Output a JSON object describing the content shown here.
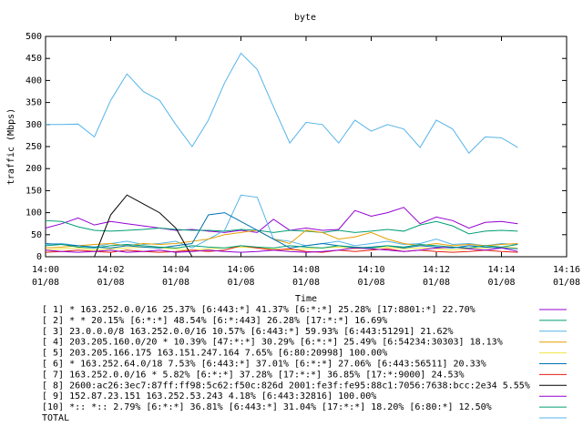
{
  "chart_data": {
    "type": "line",
    "title": "byte",
    "xlabel": "Time",
    "ylabel": "traffic (Mbps)",
    "xlim": [
      0,
      16
    ],
    "xticks": [
      {
        "value": 0,
        "label": "14:00",
        "date": "01/08"
      },
      {
        "value": 2,
        "label": "14:02",
        "date": "01/08"
      },
      {
        "value": 4,
        "label": "14:04",
        "date": "01/08"
      },
      {
        "value": 6,
        "label": "14:06",
        "date": "01/08"
      },
      {
        "value": 8,
        "label": "14:08",
        "date": "01/08"
      },
      {
        "value": 10,
        "label": "14:10",
        "date": "01/08"
      },
      {
        "value": 12,
        "label": "14:12",
        "date": "01/08"
      },
      {
        "value": 14,
        "label": "14:14",
        "date": "01/08"
      },
      {
        "value": 16,
        "label": "14:16",
        "date": "01/08"
      }
    ],
    "ylim": [
      0,
      500
    ],
    "yticks": [
      0,
      50,
      100,
      150,
      200,
      250,
      300,
      350,
      400,
      450,
      500
    ],
    "grid": false,
    "x": [
      0,
      0.5,
      1,
      1.5,
      2,
      2.5,
      3,
      3.5,
      4,
      4.5,
      5,
      5.5,
      6,
      6.5,
      7,
      7.5,
      8,
      8.5,
      9,
      9.5,
      10,
      10.5,
      11,
      11.5,
      12,
      12.5,
      13,
      13.5,
      14,
      14.5
    ],
    "series": [
      {
        "name": "[ 1] * 163.252.0.0/16 25.37%  [6:443:*] 41.37% [6:*:*] 25.28% [17:8801:*] 22.70%",
        "color": "#9400d3",
        "values": [
          65,
          75,
          88,
          72,
          80,
          75,
          70,
          65,
          60,
          62,
          58,
          55,
          60,
          55,
          85,
          60,
          65,
          60,
          62,
          105,
          92,
          100,
          112,
          75,
          90,
          82,
          65,
          78,
          80,
          75
        ]
      },
      {
        "name": "[ 2] * * 20.15%  [6:*:*] 48.54% [6:*:443] 26.28% [17:*:*] 16.69%",
        "color": "#009e73",
        "values": [
          82,
          80,
          68,
          60,
          58,
          60,
          62,
          65,
          62,
          60,
          60,
          58,
          62,
          60,
          55,
          60,
          58,
          55,
          60,
          55,
          58,
          62,
          58,
          72,
          80,
          70,
          52,
          58,
          60,
          58
        ]
      },
      {
        "name": "[ 3] 23.0.0.0/8 163.252.0.0/16 10.57%  [6:443:*] 59.93% [6:443:51291] 21.62%",
        "color": "#56b4e9",
        "values": [
          28,
          30,
          25,
          22,
          30,
          35,
          28,
          30,
          35,
          20,
          40,
          60,
          140,
          135,
          40,
          35,
          25,
          30,
          35,
          25,
          30,
          35,
          28,
          30,
          40,
          28,
          30,
          25,
          30,
          28
        ]
      },
      {
        "name": "[ 4] 203.205.160.0/20 * 10.39%  [47:*:*] 30.29% [6:*:*] 25.49% [6:54234:30303] 18.13%",
        "color": "#e69f00",
        "values": [
          20,
          22,
          25,
          28,
          30,
          25,
          30,
          28,
          30,
          35,
          40,
          50,
          55,
          60,
          40,
          30,
          60,
          55,
          40,
          45,
          55,
          40,
          30,
          25,
          30,
          25,
          28,
          25,
          28,
          30
        ]
      },
      {
        "name": "[ 5] 203.205.166.175 163.151.247.164 7.65%  [6:80:20998] 100.00%",
        "color": "#f0e442",
        "values": [
          15,
          18,
          20,
          15,
          18,
          20,
          22,
          20,
          18,
          15,
          18,
          20,
          22,
          20,
          18,
          15,
          18,
          20,
          22,
          18,
          20,
          22,
          18,
          20,
          18,
          15,
          18,
          20,
          22,
          20
        ]
      },
      {
        "name": "[ 6] * 163.252.64.0/18 7.53%  [6:443:*] 37.01% [6:*:*] 27.06% [6:443:56511] 20.33%",
        "color": "#0072b2",
        "values": [
          30,
          28,
          25,
          22,
          20,
          25,
          22,
          20,
          25,
          30,
          95,
          100,
          80,
          60,
          40,
          20,
          25,
          30,
          25,
          20,
          22,
          25,
          20,
          25,
          22,
          20,
          25,
          22,
          20,
          18
        ]
      },
      {
        "name": "[ 7] 163.252.0.0/16 * 5.82%  [6:*:*] 37.28% [17:*:*] 36.85% [17:*:9000] 24.53%",
        "color": "#e51e10",
        "values": [
          10,
          12,
          15,
          12,
          10,
          15,
          12,
          10,
          12,
          15,
          12,
          15,
          25,
          20,
          15,
          18,
          12,
          10,
          15,
          12,
          15,
          18,
          12,
          15,
          12,
          10,
          12,
          15,
          12,
          10
        ]
      },
      {
        "name": "[ 8] 2600:ac26:3ec7:87ff:ff98:5c62:f50c:826d 2001:fe3f:fe95:88c1:7056:7638:bcc:2e34 5.55%",
        "color": "#000000",
        "values": [
          null,
          null,
          null,
          0,
          95,
          140,
          120,
          100,
          65,
          0,
          null,
          null,
          null,
          null,
          null,
          null,
          null,
          null,
          null,
          null,
          null,
          null,
          null,
          null,
          null,
          null,
          null,
          null,
          null,
          null
        ]
      },
      {
        "name": "[ 9] 152.87.23.151 163.252.53.243 4.18%  [6:443:32816] 100.00%",
        "color": "#9400d3",
        "values": [
          15,
          12,
          10,
          12,
          15,
          10,
          12,
          15,
          10,
          12,
          15,
          12,
          10,
          12,
          15,
          12,
          10,
          12,
          15,
          20,
          18,
          15,
          12,
          15,
          20,
          22,
          18,
          15,
          20,
          12
        ]
      },
      {
        "name": "[10] *:: *:: 2.79%  [6:*:*] 36.81% [6:443:*] 31.04% [17:*:*] 18.20% [6:80:*] 12.50%",
        "color": "#009e73",
        "values": [
          25,
          28,
          22,
          20,
          25,
          28,
          25,
          22,
          20,
          25,
          22,
          20,
          25,
          22,
          20,
          25,
          22,
          20,
          25,
          22,
          20,
          25,
          22,
          28,
          25,
          22,
          20,
          25,
          22,
          28
        ]
      },
      {
        "name": "TOTAL",
        "color": "#56b4e9",
        "values": [
          300,
          300,
          301,
          272,
          355,
          415,
          375,
          355,
          300,
          250,
          310,
          395,
          462,
          425,
          340,
          258,
          305,
          300,
          258,
          310,
          285,
          300,
          290,
          248,
          310,
          290,
          235,
          272,
          270,
          248
        ]
      }
    ]
  }
}
